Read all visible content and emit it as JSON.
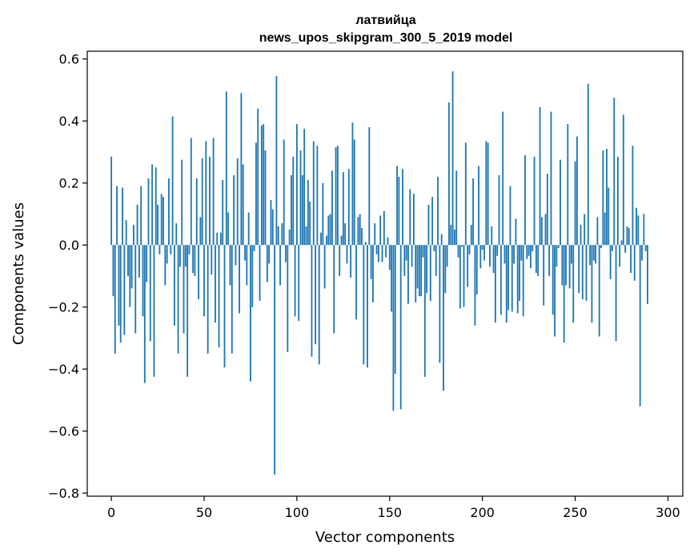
{
  "chart_data": {
    "type": "bar",
    "title": "латвийца",
    "subtitle": "news_upos_skipgram_300_5_2019 model",
    "xlabel": "Vector components",
    "ylabel": "Components values",
    "xlim": [
      -13,
      308
    ],
    "ylim": [
      -0.81,
      0.625
    ],
    "xticks": [
      0,
      50,
      100,
      150,
      200,
      250,
      300
    ],
    "yticks": [
      -0.8,
      -0.6,
      -0.4,
      -0.2,
      0.0,
      0.2,
      0.4,
      0.6
    ],
    "ytick_labels": [
      "−0.8",
      "−0.6",
      "−0.4",
      "−0.2",
      "0.0",
      "0.2",
      "0.4",
      "0.6"
    ],
    "grid": false,
    "bar_color": "#1f77b4",
    "values": [
      0.285,
      -0.165,
      -0.35,
      0.19,
      -0.26,
      -0.315,
      0.185,
      -0.29,
      0.08,
      -0.1,
      -0.2,
      -0.14,
      0.065,
      -0.285,
      0.13,
      -0.105,
      0.19,
      -0.23,
      -0.445,
      -0.12,
      0.215,
      -0.31,
      0.26,
      -0.425,
      0.25,
      0.13,
      -0.03,
      0.165,
      0.155,
      -0.13,
      -0.06,
      0.215,
      -0.03,
      0.415,
      -0.26,
      0.07,
      -0.35,
      -0.07,
      0.275,
      -0.285,
      -0.07,
      -0.425,
      -0.03,
      0.345,
      -0.09,
      -0.1,
      0.215,
      -0.175,
      0.09,
      0.28,
      -0.23,
      0.335,
      -0.35,
      0.285,
      -0.095,
      0.345,
      -0.25,
      0.04,
      -0.33,
      0.04,
      0.21,
      -0.395,
      0.495,
      0.105,
      -0.13,
      -0.35,
      0.225,
      -0.065,
      0.28,
      -0.22,
      0.49,
      0.26,
      -0.05,
      -0.13,
      0.105,
      -0.44,
      -0.2,
      -0.02,
      0.33,
      0.44,
      -0.18,
      0.385,
      0.39,
      0.305,
      -0.12,
      -0.06,
      0.145,
      0.115,
      -0.74,
      0.545,
      0.06,
      -0.13,
      0.07,
      0.34,
      -0.055,
      -0.345,
      0.05,
      0.225,
      0.285,
      -0.23,
      0.39,
      -0.245,
      0.305,
      0.225,
      0.375,
      0.06,
      0.21,
      0.14,
      -0.36,
      0.335,
      -0.32,
      0.32,
      -0.385,
      0.04,
      0.2,
      -0.14,
      0.03,
      0.095,
      0.1,
      0.24,
      -0.285,
      0.315,
      0.32,
      -0.1,
      0.03,
      0.235,
      0.07,
      -0.06,
      0.245,
      -0.105,
      0.395,
      0.34,
      -0.24,
      0.09,
      0.1,
      0.055,
      -0.385,
      0.01,
      -0.395,
      0.38,
      -0.11,
      -0.185,
      0.07,
      -0.03,
      -0.055,
      0.095,
      -0.055,
      0.11,
      -0.04,
      0.025,
      -0.08,
      -0.215,
      -0.535,
      -0.415,
      0.255,
      0.22,
      -0.53,
      0.245,
      -0.1,
      -0.05,
      -0.19,
      0.18,
      -0.07,
      0.165,
      -0.185,
      -0.14,
      -0.165,
      -0.165,
      -0.04,
      -0.425,
      -0.155,
      0.13,
      -0.18,
      0.155,
      -0.02,
      -0.1,
      0.22,
      -0.38,
      0.035,
      -0.47,
      -0.155,
      -0.07,
      0.46,
      0.065,
      0.56,
      0.05,
      0.24,
      -0.04,
      -0.205,
      -0.005,
      -0.2,
      0.33,
      -0.135,
      -0.03,
      0.065,
      0.215,
      -0.26,
      -0.16,
      0.255,
      -0.075,
      -0.015,
      -0.05,
      0.335,
      0.33,
      -0.07,
      0.06,
      -0.09,
      -0.25,
      -0.035,
      0.225,
      -0.225,
      0.43,
      -0.06,
      -0.25,
      -0.21,
      0.19,
      -0.215,
      -0.06,
      0.085,
      -0.22,
      -0.18,
      -0.05,
      -0.23,
      0.29,
      -0.045,
      -0.035,
      -0.075,
      -0.02,
      0.285,
      -0.09,
      -0.1,
      0.445,
      0.09,
      -0.195,
      0.1,
      0.23,
      -0.1,
      0.43,
      -0.225,
      -0.295,
      -0.07,
      -0.01,
      0.275,
      -0.13,
      -0.315,
      -0.13,
      0.39,
      -0.14,
      -0.06,
      -0.25,
      0.27,
      0.35,
      -0.155,
      0.065,
      -0.175,
      0.1,
      -0.18,
      0.52,
      -0.065,
      -0.25,
      -0.05,
      -0.06,
      0.09,
      -0.295,
      -0.01,
      0.305,
      0.105,
      0.31,
      0.185,
      -0.11,
      -0.02,
      0.475,
      -0.31,
      0.285,
      -0.07,
      0.015,
      0.42,
      -0.025,
      0.06,
      0.055,
      -0.09,
      0.32,
      -0.115,
      0.12,
      0.095,
      -0.52,
      -0.05,
      0.1,
      -0.02,
      -0.19
    ]
  }
}
